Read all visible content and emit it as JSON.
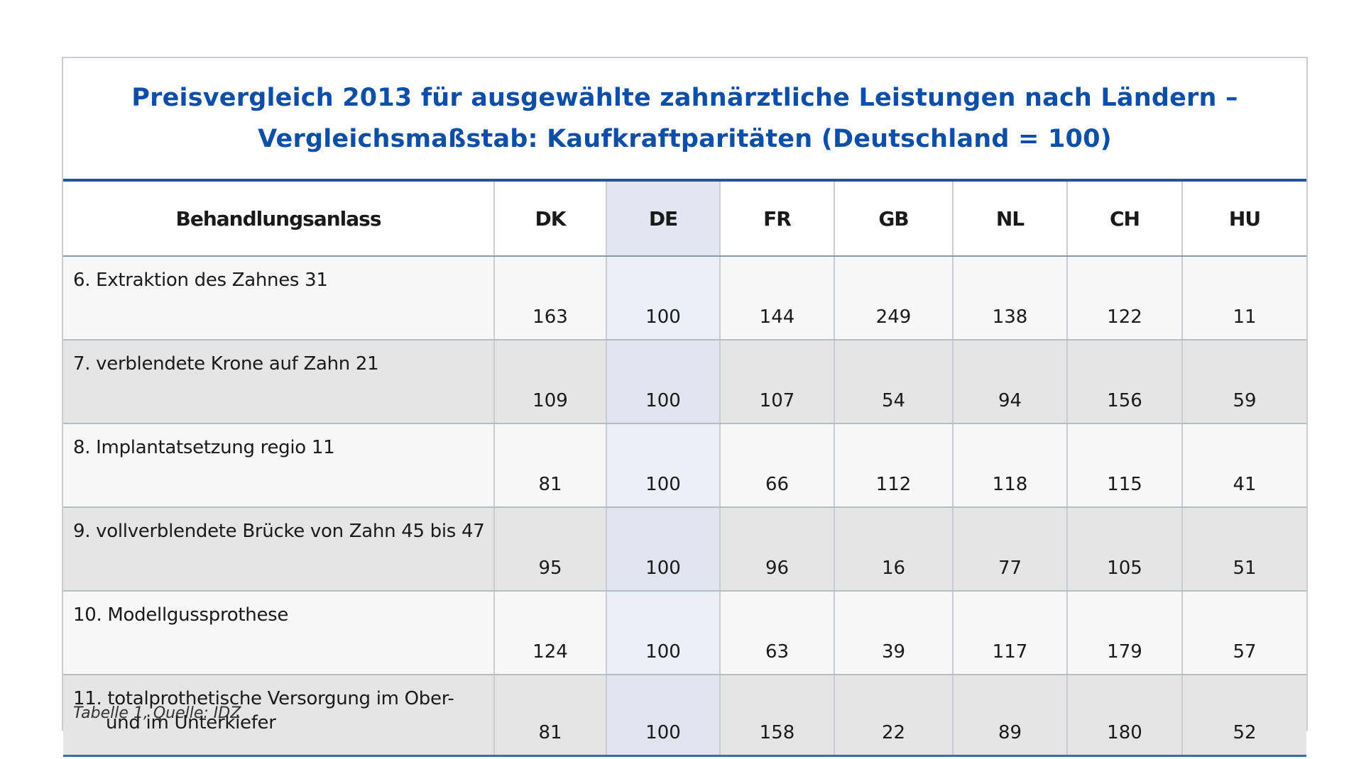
{
  "title": {
    "line1": "Preisvergleich 2013 für ausgewählte zahnärztliche Leistungen nach Ländern –",
    "line2": "Vergleichsmaßstab: Kaufkraftparitäten (Deutschland = 100)"
  },
  "table": {
    "headers": [
      "Behandlungsanlass",
      "DK",
      "DE",
      "FR",
      "GB",
      "NL",
      "CH",
      "HU"
    ],
    "rows": [
      {
        "label": "6. Extraktion des Zahnes 31",
        "label_cont": "",
        "values": [
          "163",
          "100",
          "144",
          "249",
          "138",
          "122",
          "11"
        ]
      },
      {
        "label": "7. verblendete Krone auf Zahn 21",
        "label_cont": "",
        "values": [
          "109",
          "100",
          "107",
          "54",
          "94",
          "156",
          "59"
        ]
      },
      {
        "label": "8. Implantatsetzung regio 11",
        "label_cont": "",
        "values": [
          "81",
          "100",
          "66",
          "112",
          "118",
          "115",
          "41"
        ]
      },
      {
        "label": "9. vollverblendete Brücke von Zahn 45 bis 47",
        "label_cont": "",
        "values": [
          "95",
          "100",
          "96",
          "16",
          "77",
          "105",
          "51"
        ]
      },
      {
        "label": "10. Modellgussprothese",
        "label_cont": "",
        "values": [
          "124",
          "100",
          "63",
          "39",
          "117",
          "179",
          "57"
        ]
      },
      {
        "label": "11. totalprothetische Versorgung im Ober-",
        "label_cont": "und im Unterkiefer",
        "values": [
          "81",
          "100",
          "158",
          "22",
          "89",
          "180",
          "52"
        ]
      }
    ]
  },
  "source": "Tabelle 1, Quelle: IDZ",
  "colors": {
    "title": "#0d4fa6",
    "rule": "#1a56a8",
    "highlight_column": "#e3e6f1"
  }
}
